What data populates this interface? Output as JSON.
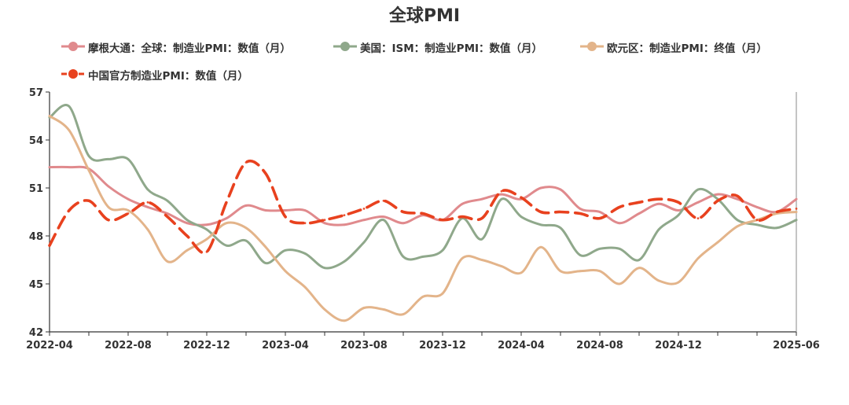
{
  "chart_data": {
    "type": "line",
    "title": "全球PMI",
    "xlabel": "",
    "ylabel": "",
    "ylim": [
      42,
      57
    ],
    "yticks": [
      42,
      45,
      48,
      51,
      54,
      57
    ],
    "xtick_labels": [
      "2022-04",
      "2022-08",
      "2022-12",
      "2023-04",
      "2023-08",
      "2023-12",
      "2024-04",
      "2024-08",
      "2024-12",
      "2025-06"
    ],
    "xrange": [
      "2022-04",
      "2025-06"
    ],
    "legend_position": "top-left",
    "grid": false,
    "series": [
      {
        "name": "摩根大通：全球：制造业PMI：数值（月）",
        "color": "#e08a8d",
        "style": "solid",
        "x": [
          "2022-04",
          "2022-05",
          "2022-06",
          "2022-07",
          "2022-08",
          "2022-09",
          "2022-10",
          "2022-11",
          "2022-12",
          "2023-01",
          "2023-02",
          "2023-03",
          "2023-04",
          "2023-05",
          "2023-06",
          "2023-07",
          "2023-08",
          "2023-09",
          "2023-10",
          "2023-11",
          "2023-12",
          "2024-01",
          "2024-02",
          "2024-03",
          "2024-04",
          "2024-05",
          "2024-06",
          "2024-07",
          "2024-08",
          "2024-09",
          "2024-10",
          "2024-11",
          "2024-12",
          "2025-01",
          "2025-02",
          "2025-03",
          "2025-04",
          "2025-05",
          "2025-06"
        ],
        "values": [
          52.3,
          52.3,
          52.2,
          51.1,
          50.3,
          49.8,
          49.4,
          48.8,
          48.7,
          49.1,
          49.9,
          49.6,
          49.6,
          49.6,
          48.8,
          48.7,
          49.0,
          49.2,
          48.8,
          49.3,
          49.0,
          50.0,
          50.3,
          50.6,
          50.3,
          51.0,
          50.9,
          49.7,
          49.5,
          48.8,
          49.4,
          50.0,
          49.6,
          50.1,
          50.6,
          50.3,
          49.8,
          49.5,
          50.3
        ]
      },
      {
        "name": "美国：ISM：制造业PMI：数值（月）",
        "color": "#8fa88b",
        "style": "solid",
        "x": [
          "2022-04",
          "2022-05",
          "2022-06",
          "2022-07",
          "2022-08",
          "2022-09",
          "2022-10",
          "2022-11",
          "2022-12",
          "2023-01",
          "2023-02",
          "2023-03",
          "2023-04",
          "2023-05",
          "2023-06",
          "2023-07",
          "2023-08",
          "2023-09",
          "2023-10",
          "2023-11",
          "2023-12",
          "2024-01",
          "2024-02",
          "2024-03",
          "2024-04",
          "2024-05",
          "2024-06",
          "2024-07",
          "2024-08",
          "2024-09",
          "2024-10",
          "2024-11",
          "2024-12",
          "2025-01",
          "2025-02",
          "2025-03",
          "2025-04",
          "2025-05",
          "2025-06"
        ],
        "values": [
          55.4,
          56.1,
          53.0,
          52.8,
          52.8,
          50.9,
          50.2,
          49.0,
          48.4,
          47.4,
          47.7,
          46.3,
          47.1,
          46.9,
          46.0,
          46.4,
          47.6,
          49.0,
          46.7,
          46.7,
          47.1,
          49.1,
          47.8,
          50.3,
          49.2,
          48.7,
          48.5,
          46.8,
          47.2,
          47.2,
          46.5,
          48.4,
          49.3,
          50.9,
          50.3,
          49.0,
          48.7,
          48.5,
          49.0
        ]
      },
      {
        "name": "欧元区：制造业PMI：终值（月）",
        "color": "#e3b48a",
        "style": "solid",
        "x": [
          "2022-04",
          "2022-05",
          "2022-06",
          "2022-07",
          "2022-08",
          "2022-09",
          "2022-10",
          "2022-11",
          "2022-12",
          "2023-01",
          "2023-02",
          "2023-03",
          "2023-04",
          "2023-05",
          "2023-06",
          "2023-07",
          "2023-08",
          "2023-09",
          "2023-10",
          "2023-11",
          "2023-12",
          "2024-01",
          "2024-02",
          "2024-03",
          "2024-04",
          "2024-05",
          "2024-06",
          "2024-07",
          "2024-08",
          "2024-09",
          "2024-10",
          "2024-11",
          "2024-12",
          "2025-01",
          "2025-02",
          "2025-03",
          "2025-04",
          "2025-05",
          "2025-06"
        ],
        "values": [
          55.5,
          54.6,
          52.1,
          49.8,
          49.6,
          48.4,
          46.4,
          47.1,
          47.8,
          48.8,
          48.5,
          47.3,
          45.8,
          44.8,
          43.4,
          42.7,
          43.5,
          43.4,
          43.1,
          44.2,
          44.4,
          46.6,
          46.5,
          46.1,
          45.7,
          47.3,
          45.8,
          45.8,
          45.8,
          45.0,
          46.0,
          45.2,
          45.1,
          46.6,
          47.6,
          48.6,
          49.0,
          49.4,
          49.5
        ]
      },
      {
        "name": "中国官方制造业PMI：数值（月）",
        "color": "#e8411e",
        "style": "dashed",
        "x": [
          "2022-04",
          "2022-05",
          "2022-06",
          "2022-07",
          "2022-08",
          "2022-09",
          "2022-10",
          "2022-11",
          "2022-12",
          "2023-01",
          "2023-02",
          "2023-03",
          "2023-04",
          "2023-05",
          "2023-06",
          "2023-07",
          "2023-08",
          "2023-09",
          "2023-10",
          "2023-11",
          "2023-12",
          "2024-01",
          "2024-02",
          "2024-03",
          "2024-04",
          "2024-05",
          "2024-06",
          "2024-07",
          "2024-08",
          "2024-09",
          "2024-10",
          "2024-11",
          "2024-12",
          "2025-01",
          "2025-02",
          "2025-03",
          "2025-04",
          "2025-05",
          "2025-06"
        ],
        "values": [
          47.4,
          49.6,
          50.2,
          49.0,
          49.4,
          50.1,
          49.2,
          48.0,
          47.0,
          50.1,
          52.6,
          51.9,
          49.2,
          48.8,
          49.0,
          49.3,
          49.7,
          50.2,
          49.5,
          49.4,
          49.0,
          49.2,
          49.1,
          50.8,
          50.4,
          49.5,
          49.5,
          49.4,
          49.1,
          49.8,
          50.1,
          50.3,
          50.1,
          49.1,
          50.2,
          50.5,
          49.0,
          49.5,
          49.7
        ]
      }
    ]
  }
}
